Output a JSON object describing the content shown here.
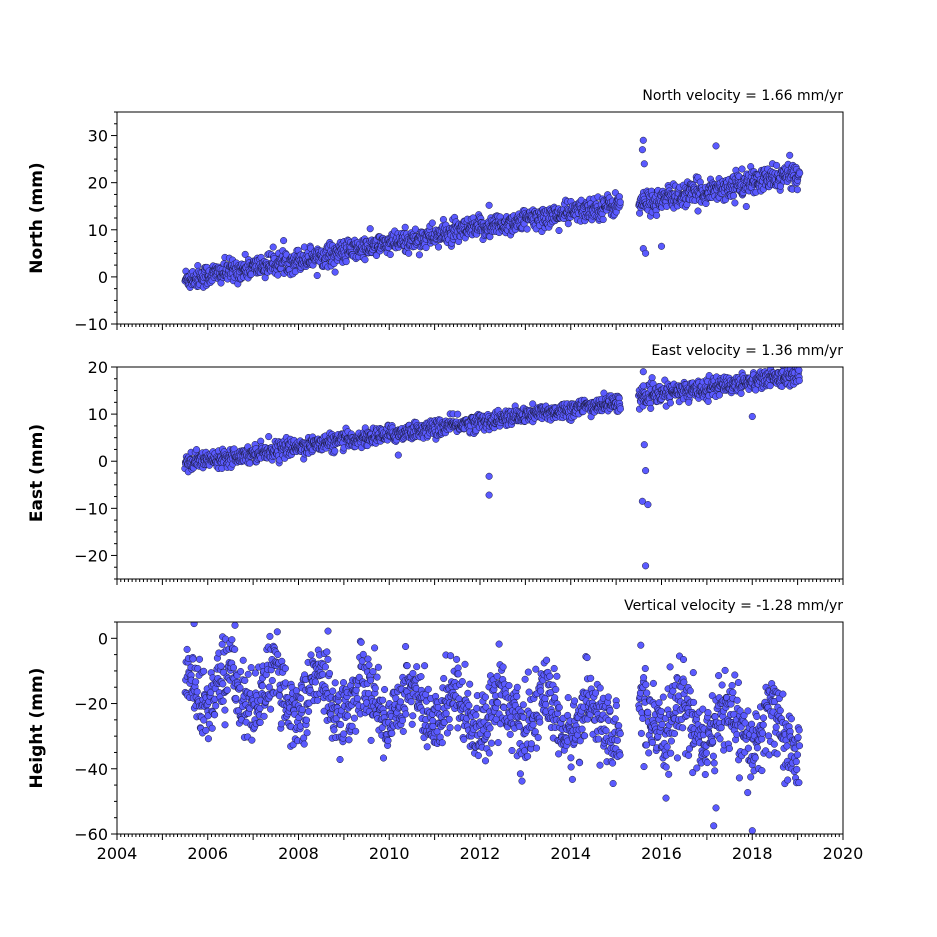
{
  "chart_data": [
    {
      "type": "scatter",
      "panel": "north",
      "title": "North velocity = 1.66 mm/yr",
      "ylabel": "North (mm)",
      "xlim": [
        2004,
        2020
      ],
      "ylim": [
        -10,
        35
      ],
      "yticks": [
        -10,
        0,
        10,
        20,
        30
      ],
      "xticks": [],
      "trend": {
        "slope_mm_per_yr": 1.66,
        "intercept_at_2005_5": 0
      },
      "segments": [
        {
          "x_start": 2005.5,
          "x_end": 2015.1,
          "y_start": -0.5,
          "y_end": 15.5,
          "scatter": 1.2
        },
        {
          "x_start": 2015.5,
          "x_end": 2019.05,
          "y_start": 15.5,
          "y_end": 22,
          "scatter": 1.3
        }
      ],
      "outliers": [
        {
          "x": 2015.6,
          "y": 29
        },
        {
          "x": 2015.58,
          "y": 27
        },
        {
          "x": 2015.62,
          "y": 24
        },
        {
          "x": 2015.6,
          "y": 6
        },
        {
          "x": 2015.65,
          "y": 5
        },
        {
          "x": 2016.0,
          "y": 6.5
        },
        {
          "x": 2017.2,
          "y": 27.8
        },
        {
          "x": 2012.2,
          "y": 15.2
        }
      ]
    },
    {
      "type": "scatter",
      "panel": "east",
      "title": "East velocity = 1.36 mm/yr",
      "ylabel": "East (mm)",
      "xlim": [
        2004,
        2020
      ],
      "ylim": [
        -25,
        20
      ],
      "yticks": [
        -20,
        -10,
        0,
        10,
        20
      ],
      "xticks": [],
      "trend": {
        "slope_mm_per_yr": 1.36,
        "intercept_at_2005_5": 0
      },
      "segments": [
        {
          "x_start": 2005.5,
          "x_end": 2015.1,
          "y_start": -0.3,
          "y_end": 12.5,
          "scatter": 0.9
        },
        {
          "x_start": 2015.5,
          "x_end": 2019.05,
          "y_start": 13.5,
          "y_end": 18.5,
          "scatter": 1.0
        }
      ],
      "outliers": [
        {
          "x": 2012.2,
          "y": -3.2
        },
        {
          "x": 2012.2,
          "y": -7.2
        },
        {
          "x": 2010.2,
          "y": 1.3
        },
        {
          "x": 2015.6,
          "y": 19
        },
        {
          "x": 2015.62,
          "y": 3.5
        },
        {
          "x": 2015.65,
          "y": -2
        },
        {
          "x": 2015.58,
          "y": -8.5
        },
        {
          "x": 2015.7,
          "y": -9.2
        },
        {
          "x": 2015.65,
          "y": -22.2
        },
        {
          "x": 2015.6,
          "y": 16
        },
        {
          "x": 2018.0,
          "y": 9.5
        },
        {
          "x": 2016.6,
          "y": 12.5
        }
      ]
    },
    {
      "type": "scatter",
      "panel": "height",
      "title": "Vertical velocity = -1.28 mm/yr",
      "ylabel": "Height (mm)",
      "xlim": [
        2004,
        2020
      ],
      "ylim": [
        -60,
        5
      ],
      "yticks": [
        -60,
        -40,
        -20,
        0
      ],
      "xticks": [
        2004,
        2006,
        2008,
        2010,
        2012,
        2014,
        2016,
        2018,
        2020
      ],
      "trend": {
        "slope_mm_per_yr": -1.28,
        "intercept_at_2005_5": -14
      },
      "seasonal_amplitude_mm": 6,
      "segments": [
        {
          "x_start": 2005.5,
          "x_end": 2015.1,
          "y_start": -14,
          "y_end": -26,
          "scatter": 5.5
        },
        {
          "x_start": 2015.5,
          "x_end": 2019.05,
          "y_start": -24,
          "y_end": -30,
          "scatter": 6
        }
      ],
      "outliers": [
        {
          "x": 2005.7,
          "y": 4.5
        },
        {
          "x": 2006.6,
          "y": 4
        },
        {
          "x": 2008.65,
          "y": 2.2
        },
        {
          "x": 2017.15,
          "y": -57.5
        },
        {
          "x": 2018.0,
          "y": -59
        },
        {
          "x": 2017.2,
          "y": -52
        },
        {
          "x": 2016.1,
          "y": -49
        },
        {
          "x": 2016.7,
          "y": -10.5
        }
      ]
    }
  ],
  "colors": {
    "marker_fill": "#5a5aff",
    "marker_edge": "#1a1a3a",
    "axis": "#000000"
  }
}
